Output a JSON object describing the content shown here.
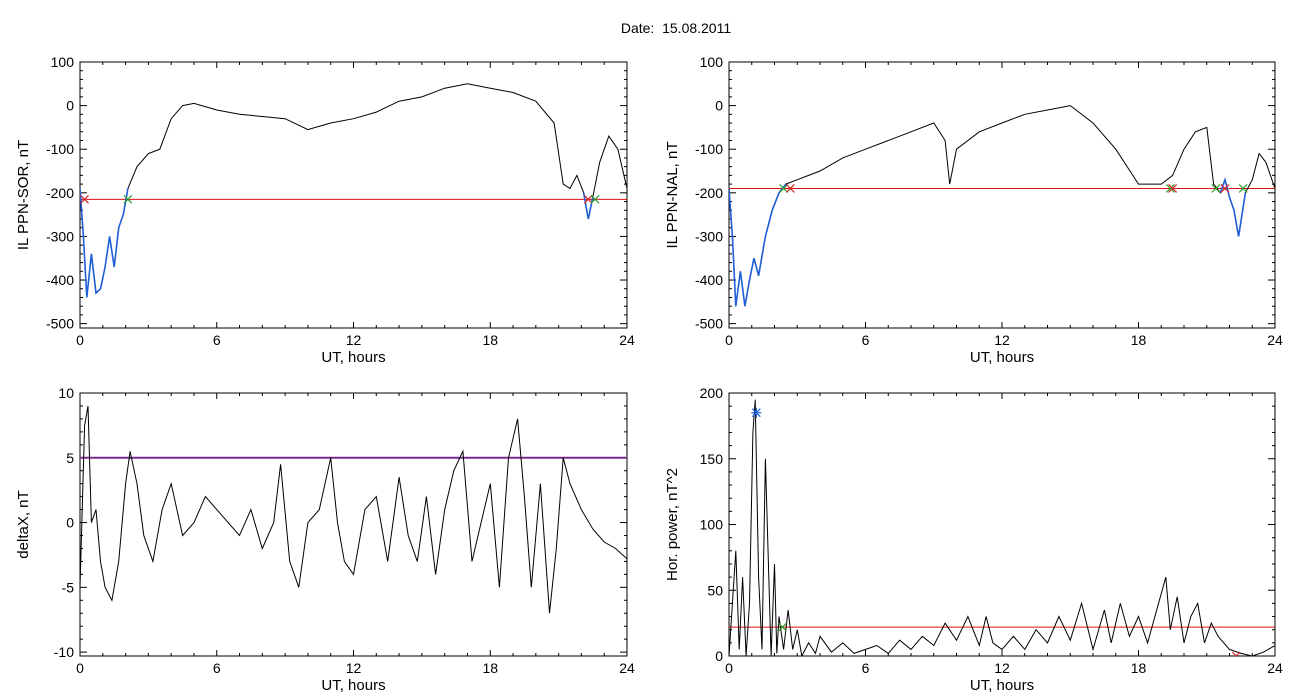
{
  "figure_title": "Date:  15.08.2011",
  "colors": {
    "signal": "#000000",
    "highlight": "#1f5fd6",
    "threshold": "#e01010",
    "threshold_deltax": "#7a2a8a",
    "marker_green": "#2ca02c",
    "marker_red": "#d62728",
    "marker_blue": "#1f5fd6"
  },
  "chart_data": [
    {
      "id": "sor",
      "type": "line",
      "xlabel": "UT, hours",
      "ylabel": "IL PPN-SOR, nT",
      "xlim": [
        0,
        24
      ],
      "ylim": [
        -510,
        100
      ],
      "xticks": [
        0,
        6,
        12,
        18,
        24
      ],
      "yticks": [
        -500,
        -400,
        -300,
        -200,
        -100,
        0,
        100
      ],
      "threshold": -215,
      "series": [
        {
          "x": [
            0,
            0.15,
            0.3,
            0.5,
            0.7,
            0.9,
            1.1,
            1.3,
            1.5,
            1.7,
            1.9,
            2.1,
            2.5,
            3,
            3.5,
            4,
            4.5,
            5,
            6,
            7,
            8,
            9,
            10,
            11,
            12,
            13,
            14,
            15,
            16,
            17,
            18,
            19,
            20,
            20.8,
            21.2,
            21.5,
            21.8,
            22.1,
            22.3,
            22.5,
            22.8,
            23.2,
            23.6,
            24
          ],
          "y": [
            -190,
            -300,
            -440,
            -340,
            -430,
            -420,
            -370,
            -300,
            -370,
            -280,
            -250,
            -190,
            -140,
            -110,
            -100,
            -30,
            0,
            5,
            -10,
            -20,
            -25,
            -30,
            -55,
            -40,
            -30,
            -15,
            10,
            20,
            40,
            50,
            40,
            30,
            10,
            -40,
            -180,
            -190,
            -160,
            -200,
            -260,
            -210,
            -130,
            -70,
            -100,
            -190
          ]
        }
      ],
      "highlight_segments": [
        [
          0,
          2.1
        ],
        [
          22.1,
          22.5
        ]
      ],
      "markers": [
        {
          "x": 0.2,
          "y": -215,
          "symbol": "x",
          "color": "#d62728"
        },
        {
          "x": 2.1,
          "y": -215,
          "symbol": "x",
          "color": "#2ca02c"
        },
        {
          "x": 22.3,
          "y": -215,
          "symbol": "x",
          "color": "#d62728"
        },
        {
          "x": 22.6,
          "y": -215,
          "symbol": "x",
          "color": "#2ca02c"
        }
      ]
    },
    {
      "id": "nal",
      "type": "line",
      "xlabel": "UT, hours",
      "ylabel": "IL PPN-NAL, nT",
      "xlim": [
        0,
        24
      ],
      "ylim": [
        -510,
        100
      ],
      "xticks": [
        0,
        6,
        12,
        18,
        24
      ],
      "yticks": [
        -500,
        -400,
        -300,
        -200,
        -100,
        0,
        100
      ],
      "threshold": -190,
      "series": [
        {
          "x": [
            0,
            0.15,
            0.3,
            0.5,
            0.7,
            0.9,
            1.1,
            1.3,
            1.6,
            1.9,
            2.2,
            2.5,
            3,
            3.5,
            4,
            5,
            6,
            7,
            8,
            9,
            9.5,
            9.7,
            10,
            11,
            12,
            13,
            14,
            15,
            16,
            17,
            18,
            19,
            19.5,
            20,
            20.5,
            21,
            21.3,
            21.6,
            21.8,
            22,
            22.2,
            22.4,
            22.7,
            23,
            23.3,
            23.6,
            24
          ],
          "y": [
            -190,
            -300,
            -460,
            -380,
            -460,
            -400,
            -350,
            -390,
            -300,
            -240,
            -200,
            -180,
            -170,
            -160,
            -150,
            -120,
            -100,
            -80,
            -60,
            -40,
            -80,
            -180,
            -100,
            -60,
            -40,
            -20,
            -10,
            0,
            -40,
            -100,
            -180,
            -180,
            -160,
            -100,
            -60,
            -50,
            -180,
            -200,
            -170,
            -210,
            -240,
            -300,
            -200,
            -170,
            -110,
            -130,
            -190
          ]
        }
      ],
      "highlight_segments": [
        [
          0,
          2.6
        ],
        [
          21.4,
          22.7
        ]
      ],
      "markers": [
        {
          "x": 2.4,
          "y": -190,
          "symbol": "x",
          "color": "#2ca02c"
        },
        {
          "x": 2.7,
          "y": -190,
          "symbol": "x",
          "color": "#d62728"
        },
        {
          "x": 19.4,
          "y": -190,
          "symbol": "x",
          "color": "#2ca02c"
        },
        {
          "x": 19.5,
          "y": -190,
          "symbol": "x",
          "color": "#d62728"
        },
        {
          "x": 21.4,
          "y": -190,
          "symbol": "x",
          "color": "#2ca02c"
        },
        {
          "x": 21.8,
          "y": -190,
          "symbol": "x",
          "color": "#d62728"
        },
        {
          "x": 22.6,
          "y": -190,
          "symbol": "x",
          "color": "#2ca02c"
        }
      ]
    },
    {
      "id": "deltax",
      "type": "line",
      "xlabel": "UT, hours",
      "ylabel": "deltaX, nT",
      "xlim": [
        0,
        24
      ],
      "ylim": [
        -10.3,
        10
      ],
      "xticks": [
        0,
        6,
        12,
        18,
        24
      ],
      "yticks": [
        -10,
        -5,
        0,
        5,
        10
      ],
      "threshold": 5,
      "series": [
        {
          "x": [
            0,
            0.2,
            0.35,
            0.5,
            0.7,
            0.9,
            1.1,
            1.4,
            1.7,
            2,
            2.2,
            2.5,
            2.8,
            3.2,
            3.6,
            4,
            4.5,
            5,
            5.5,
            6,
            6.5,
            7,
            7.5,
            8,
            8.5,
            8.8,
            9.2,
            9.6,
            10,
            10.5,
            11,
            11.3,
            11.6,
            12,
            12.5,
            13,
            13.5,
            14,
            14.4,
            14.8,
            15.2,
            15.6,
            16,
            16.4,
            16.8,
            17.2,
            17.6,
            18,
            18.4,
            18.8,
            19.2,
            19.5,
            19.8,
            20.2,
            20.6,
            20.9,
            21.2,
            21.5,
            22,
            22.5,
            23,
            23.5,
            24
          ],
          "y": [
            -5,
            7.5,
            9,
            0,
            1,
            -3,
            -5,
            -6,
            -3,
            3,
            5.5,
            3,
            -1,
            -3,
            1,
            3,
            -1,
            0,
            2,
            1,
            0,
            -1,
            1,
            -2,
            0,
            4.5,
            -3,
            -5,
            0,
            1,
            5,
            0,
            -3,
            -4,
            1,
            2,
            -3,
            3.5,
            -1,
            -3,
            2,
            -4,
            1,
            4,
            5.5,
            -3,
            0,
            3,
            -5,
            5,
            8,
            2,
            -5,
            3,
            -7,
            -2,
            5,
            3,
            1,
            -0.5,
            -1.5,
            -2,
            -2.8
          ]
        }
      ],
      "highlight_segments": [],
      "markers": []
    },
    {
      "id": "power",
      "type": "line",
      "xlabel": "UT, hours",
      "ylabel": "Hor. power, nT^2",
      "xlim": [
        0,
        24
      ],
      "ylim": [
        0,
        200
      ],
      "xticks": [
        0,
        6,
        12,
        18,
        24
      ],
      "yticks": [
        0,
        50,
        100,
        150,
        200
      ],
      "threshold": 22,
      "series": [
        {
          "x": [
            0,
            0.15,
            0.3,
            0.45,
            0.6,
            0.75,
            0.9,
            1.05,
            1.15,
            1.3,
            1.45,
            1.6,
            1.75,
            1.85,
            2,
            2.1,
            2.2,
            2.4,
            2.6,
            2.8,
            3,
            3.2,
            3.5,
            3.8,
            4,
            4.5,
            5,
            5.5,
            6,
            6.5,
            7,
            7.5,
            8,
            8.5,
            9,
            9.5,
            10,
            10.5,
            11,
            11.3,
            11.6,
            12,
            12.5,
            13,
            13.5,
            14,
            14.5,
            15,
            15.5,
            16,
            16.5,
            16.8,
            17.2,
            17.6,
            18,
            18.4,
            18.8,
            19.2,
            19.4,
            19.7,
            20,
            20.3,
            20.6,
            20.9,
            21.2,
            21.5,
            22,
            22.5,
            23,
            23.5,
            24
          ],
          "y": [
            0,
            40,
            80,
            5,
            60,
            0,
            40,
            170,
            195,
            60,
            5,
            150,
            60,
            0,
            70,
            2,
            30,
            5,
            35,
            5,
            20,
            0,
            10,
            2,
            15,
            3,
            10,
            2,
            5,
            8,
            2,
            12,
            5,
            15,
            8,
            25,
            12,
            30,
            8,
            30,
            10,
            5,
            15,
            5,
            20,
            10,
            30,
            12,
            40,
            5,
            35,
            10,
            40,
            15,
            30,
            10,
            35,
            60,
            20,
            45,
            10,
            30,
            40,
            10,
            25,
            15,
            5,
            2,
            0,
            3,
            8
          ]
        }
      ],
      "highlight_segments": [],
      "markers": [
        {
          "x": 1.2,
          "y": 185,
          "symbol": "asterisk",
          "color": "#1f5fd6"
        },
        {
          "x": 2.35,
          "y": 22,
          "symbol": "x",
          "color": "#2ca02c"
        },
        {
          "x": 22.3,
          "y": 0,
          "symbol": "x",
          "color": "#d62728"
        }
      ]
    }
  ]
}
